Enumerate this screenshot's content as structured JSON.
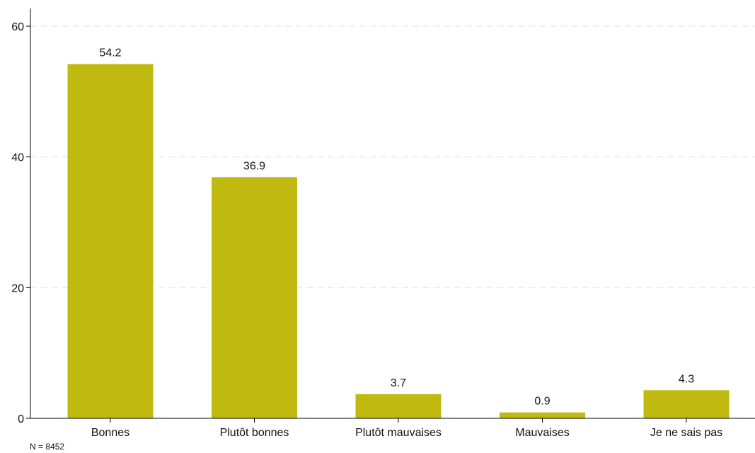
{
  "chart_data": {
    "type": "bar",
    "categories": [
      "Bonnes",
      "Plutôt bonnes",
      "Plutôt mauvaises",
      "Mauvaises",
      "Je ne sais pas"
    ],
    "values": [
      54.2,
      36.9,
      3.7,
      0.9,
      4.3
    ],
    "data_labels": [
      "54.2",
      "36.9",
      "3.7",
      "0.9",
      "4.3"
    ],
    "title": "",
    "xlabel": "",
    "ylabel": "",
    "ylim": [
      0,
      62
    ],
    "yticks": [
      0,
      20,
      40,
      60
    ],
    "grid": "horizontal dashed",
    "legend": "none",
    "bar_color": "#c0b90f",
    "grid_color": "#e6e6e6"
  },
  "footnote": "N = 8452"
}
